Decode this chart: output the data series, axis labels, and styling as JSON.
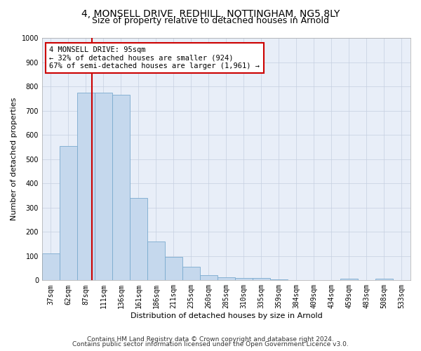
{
  "title": "4, MONSELL DRIVE, REDHILL, NOTTINGHAM, NG5 8LY",
  "subtitle": "Size of property relative to detached houses in Arnold",
  "xlabel": "Distribution of detached houses by size in Arnold",
  "ylabel": "Number of detached properties",
  "categories": [
    "37sqm",
    "62sqm",
    "87sqm",
    "111sqm",
    "136sqm",
    "161sqm",
    "186sqm",
    "211sqm",
    "235sqm",
    "260sqm",
    "285sqm",
    "310sqm",
    "335sqm",
    "359sqm",
    "384sqm",
    "409sqm",
    "434sqm",
    "459sqm",
    "483sqm",
    "508sqm",
    "533sqm"
  ],
  "values": [
    110,
    555,
    775,
    775,
    765,
    340,
    160,
    97,
    55,
    20,
    13,
    11,
    11,
    5,
    0,
    0,
    0,
    8,
    0,
    8,
    0
  ],
  "bar_color": "#c5d8ed",
  "bar_edge_color": "#7aabcf",
  "annotation_text": "4 MONSELL DRIVE: 95sqm\n← 32% of detached houses are smaller (924)\n67% of semi-detached houses are larger (1,961) →",
  "annotation_box_color": "#ffffff",
  "annotation_box_edge_color": "#cc0000",
  "red_line_color": "#cc0000",
  "ylim": [
    0,
    1000
  ],
  "yticks": [
    0,
    100,
    200,
    300,
    400,
    500,
    600,
    700,
    800,
    900,
    1000
  ],
  "footer1": "Contains HM Land Registry data © Crown copyright and database right 2024.",
  "footer2": "Contains public sector information licensed under the Open Government Licence v3.0.",
  "title_fontsize": 10,
  "subtitle_fontsize": 9,
  "axis_label_fontsize": 8,
  "tick_fontsize": 7,
  "annotation_fontsize": 7.5,
  "footer_fontsize": 6.5
}
